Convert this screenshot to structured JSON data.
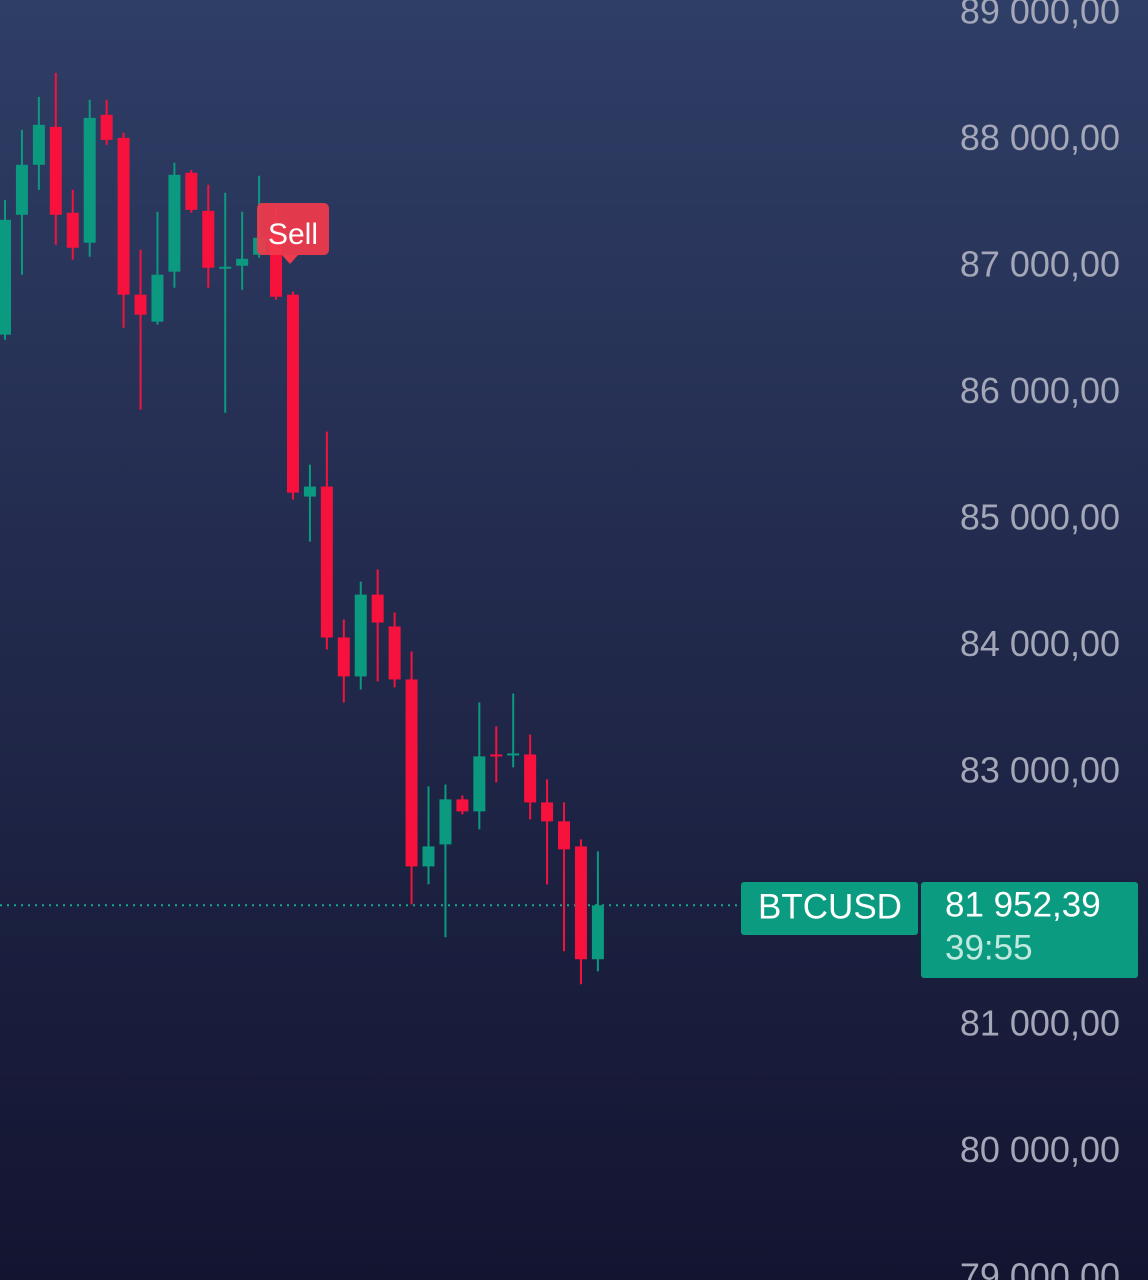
{
  "chart_data": {
    "type": "candlestick",
    "symbol": "BTCUSD",
    "annotation": "Sell",
    "last_price": {
      "value": 81952.39,
      "label": "81 952,39"
    },
    "countdown": "39:55",
    "up_color": "#0b9a7f",
    "down_color": "#f7113d",
    "ylim": [
      78990,
      89110
    ],
    "yticks": [
      {
        "value": 79000,
        "label": "79 000,00"
      },
      {
        "value": 80000,
        "label": "80 000,00"
      },
      {
        "value": 81000,
        "label": "81 000,00"
      },
      {
        "value": 82000,
        "label": "82 000,00"
      },
      {
        "value": 83000,
        "label": "83 000,00"
      },
      {
        "value": 84000,
        "label": "84 000,00"
      },
      {
        "value": 85000,
        "label": "85 000,00"
      },
      {
        "value": 86000,
        "label": "86 000,00"
      },
      {
        "value": 87000,
        "label": "87 000,00"
      },
      {
        "value": 88000,
        "label": "88 000,00"
      },
      {
        "value": 89000,
        "label": "89 000,00"
      }
    ],
    "open": [
      86464,
      87412,
      87807,
      88107,
      87428,
      87191,
      88202,
      88020,
      86780,
      86567,
      86962,
      87744,
      87443,
      86993,
      87009,
      87096,
      87254,
      86780,
      85184,
      85263,
      84070,
      83762,
      84409,
      84157,
      83738,
      82260,
      82434,
      82790,
      82695,
      83145,
      83138,
      83145,
      82766,
      82616,
      82418,
      81526
    ],
    "high": [
      87530,
      88083,
      88344,
      88534,
      87609,
      88321,
      88321,
      88060,
      87135,
      87436,
      87823,
      87767,
      87649,
      87586,
      87436,
      87720,
      87475,
      86804,
      85437,
      85697,
      84212,
      84512,
      84607,
      84267,
      83959,
      82893,
      82908,
      82821,
      83556,
      83367,
      83627,
      83303,
      82948,
      82766,
      82474,
      82379
    ],
    "low": [
      86424,
      86938,
      87609,
      87175,
      87056,
      87080,
      87965,
      86519,
      85871,
      86543,
      86835,
      87428,
      86835,
      85847,
      86819,
      87072,
      86740,
      85160,
      84828,
      83975,
      83556,
      83659,
      83722,
      83675,
      81960,
      82118,
      81700,
      82671,
      82553,
      82924,
      83043,
      82632,
      82118,
      81589,
      81328,
      81431
    ],
    "close": [
      87372,
      87807,
      88123,
      87412,
      87151,
      88178,
      88004,
      86780,
      86622,
      86938,
      87728,
      87451,
      86993,
      87001,
      87064,
      87230,
      86764,
      85215,
      85263,
      84070,
      83762,
      84409,
      84188,
      83738,
      82260,
      82418,
      82790,
      82695,
      83130,
      83130,
      83153,
      82766,
      82616,
      82395,
      81526,
      81952.39
    ]
  }
}
